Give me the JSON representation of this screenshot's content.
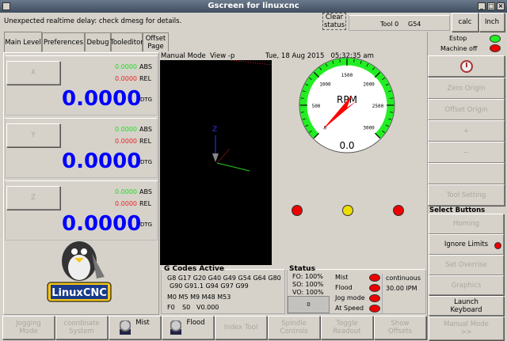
{
  "window": {
    "title": "Gscreen for linuxcnc"
  },
  "status_bar": {
    "message": "Unexpected realtime delay: check dmesg for details.",
    "clear_status": "Clear status",
    "tool": "Tool 0",
    "work_offset": "G54",
    "calc": "calc",
    "units": "Inch"
  },
  "tabs": [
    {
      "label": "Main Level"
    },
    {
      "label": "Preferences"
    },
    {
      "label": "Debug"
    },
    {
      "label": "Tooleditor"
    },
    {
      "label": "Offset Page"
    }
  ],
  "dro": [
    {
      "axis": "X",
      "abs": "0.0000",
      "abs_label": "ABS",
      "rel": "0.0000",
      "rel_label": "REL",
      "dtg": "0.0000",
      "dtg_label": "DTG"
    },
    {
      "axis": "Y",
      "abs": "0.0000",
      "abs_label": "ABS",
      "rel": "0.0000",
      "rel_label": "REL",
      "dtg": "0.0000",
      "dtg_label": "DTG"
    },
    {
      "axis": "Z",
      "abs": "0.0000",
      "abs_label": "ABS",
      "rel": "0.0000",
      "rel_label": "REL",
      "dtg": "0.0000",
      "dtg_label": "DTG"
    }
  ],
  "logo": {
    "text": "LinuxCNC"
  },
  "preview": {
    "mode": "Manual Mode",
    "view": "View -p",
    "datetime": "Tue, 18 Aug 2015   05:32:35 am",
    "axis_label": "Z"
  },
  "gauge": {
    "label": "RPM",
    "value": "0.0",
    "min": 0,
    "max": 3000,
    "ticks": [
      "0",
      "500",
      "1000",
      "1500",
      "2000",
      "2500",
      "3000"
    ],
    "needle_value": 0,
    "arc_color": "#22ee22",
    "needle_color": "#ff0000"
  },
  "indicators": [
    {
      "color": "#ee0000"
    },
    {
      "color": "#eedd00"
    },
    {
      "color": "#ee0000"
    }
  ],
  "gcodes": {
    "title": "G Codes Active",
    "line1": "G8 G17 G20 G40 G49 G54 G64 G80",
    "line2": "G90 G91.1 G94 G97 G99",
    "mcodes": "M0 M5 M9 M48 M53",
    "feed": "F0",
    "speed": "S0",
    "velocity": "V0.000"
  },
  "status": {
    "title": "Status",
    "fo": "FO: 100%",
    "so": "SO: 100%",
    "vo": "VO: 100%",
    "box_value": "0",
    "leds": [
      {
        "label": "Mist"
      },
      {
        "label": "Flood"
      },
      {
        "label": "Jog mode"
      },
      {
        "label": "At Speed"
      }
    ],
    "jog": "continuous",
    "rate": "30.00 IPM"
  },
  "right_panel": {
    "estop": "Estop",
    "machine": "Machine off",
    "buttons": [
      "Zero Origin",
      "Offset Origin",
      "+",
      "−",
      "",
      "Tool Setting"
    ],
    "section_title": "Select Buttons",
    "select_buttons": [
      "Homing",
      "Ignore Limits",
      "Set Overrise",
      "Graphics",
      "Launch Keyboard",
      "Manual Mode >>"
    ]
  },
  "bottom_buttons": [
    {
      "label": "Jogging Mode"
    },
    {
      "label": "coordinate System"
    },
    {
      "label": "Mist"
    },
    {
      "label": "Flood"
    },
    {
      "label": "Index Tool"
    },
    {
      "label": "Spindle Controls"
    },
    {
      "label": "Toggle Readout"
    },
    {
      "label": "Show Offsets"
    }
  ],
  "colors": {
    "led_green": "#22ee22",
    "led_red": "#ee0000",
    "dtg_blue": "#0000ff"
  }
}
